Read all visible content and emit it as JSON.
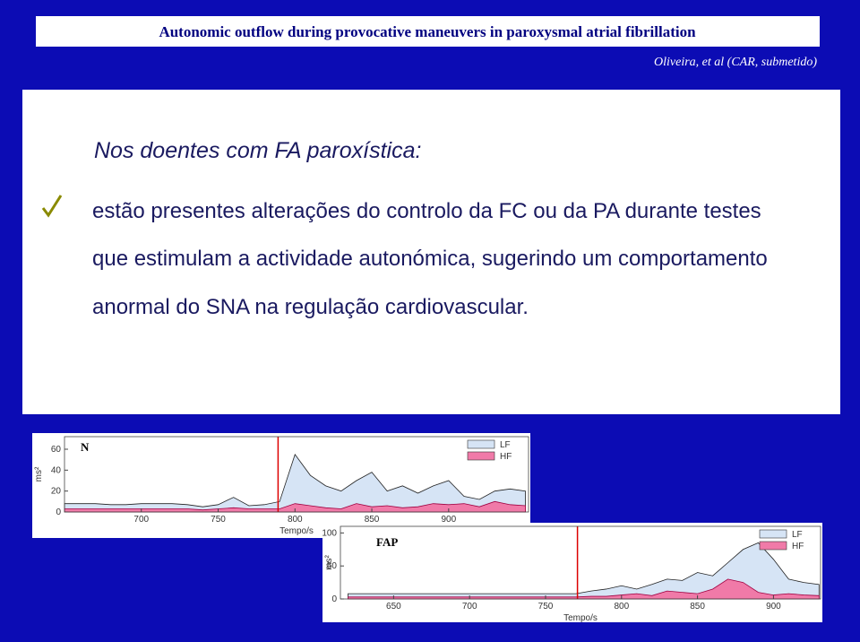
{
  "header": {
    "title": "Autonomic outflow during provocative maneuvers in paroxysmal atrial fibrillation",
    "citation": "Oliveira, et al (CAR, submetido)"
  },
  "body": {
    "heading": "Nos doentes com FA paroxística:",
    "lines": [
      "estão presentes alterações do controlo da FC ou da PA durante testes",
      "que estimulam a actividade autonómica, sugerindo um comportamento",
      "anormal do SNA na regulação cardiovascular."
    ]
  },
  "chart_data": [
    {
      "type": "area",
      "label": "N",
      "x_label": "Tempo/s",
      "y_label": "ms²",
      "marker_x": 789,
      "x": [
        650,
        660,
        670,
        680,
        690,
        700,
        710,
        720,
        730,
        740,
        750,
        760,
        770,
        780,
        790,
        800,
        810,
        820,
        830,
        840,
        850,
        860,
        870,
        880,
        890,
        900,
        910,
        920,
        930,
        940,
        950
      ],
      "series": [
        {
          "name": "LF",
          "color": "#d6e4f5",
          "values": [
            8,
            8,
            8,
            7,
            7,
            8,
            8,
            8,
            7,
            5,
            7,
            14,
            6,
            7,
            10,
            55,
            35,
            25,
            20,
            30,
            38,
            20,
            25,
            18,
            25,
            30,
            15,
            12,
            20,
            22,
            20
          ]
        },
        {
          "name": "HF",
          "color": "#f07aa8",
          "values": [
            3,
            3,
            3,
            3,
            3,
            3,
            3,
            3,
            3,
            2,
            3,
            4,
            3,
            3,
            3,
            8,
            6,
            4,
            3,
            8,
            5,
            6,
            4,
            5,
            8,
            7,
            8,
            5,
            10,
            7,
            6
          ]
        }
      ],
      "xlim": [
        650,
        952
      ],
      "ylim": [
        0,
        72
      ],
      "xticks": [
        700,
        750,
        800,
        850,
        900
      ],
      "yticks": [
        0,
        20,
        40,
        60
      ]
    },
    {
      "type": "area",
      "label": "FAP",
      "x_label": "Tempo/s",
      "y_label": "ms²",
      "marker_x": 771,
      "x": [
        620,
        630,
        640,
        650,
        660,
        670,
        680,
        690,
        700,
        710,
        720,
        730,
        740,
        750,
        760,
        770,
        780,
        790,
        800,
        810,
        820,
        830,
        840,
        850,
        860,
        870,
        880,
        890,
        900,
        910,
        920,
        930
      ],
      "series": [
        {
          "name": "LF",
          "color": "#d6e4f5",
          "values": [
            8,
            8,
            8,
            8,
            8,
            8,
            8,
            8,
            8,
            8,
            8,
            8,
            8,
            8,
            8,
            8,
            12,
            15,
            20,
            15,
            22,
            30,
            28,
            40,
            35,
            55,
            75,
            85,
            60,
            30,
            25,
            22
          ]
        },
        {
          "name": "HF",
          "color": "#f07aa8",
          "values": [
            3,
            3,
            3,
            3,
            3,
            3,
            3,
            3,
            3,
            3,
            3,
            3,
            3,
            3,
            3,
            3,
            4,
            4,
            6,
            8,
            5,
            12,
            10,
            8,
            15,
            30,
            25,
            10,
            6,
            8,
            6,
            5
          ]
        }
      ],
      "xlim": [
        615,
        931
      ],
      "ylim": [
        0,
        110
      ],
      "xticks": [
        650,
        700,
        750,
        800,
        850,
        900
      ],
      "yticks": [
        0,
        50,
        100
      ]
    }
  ]
}
